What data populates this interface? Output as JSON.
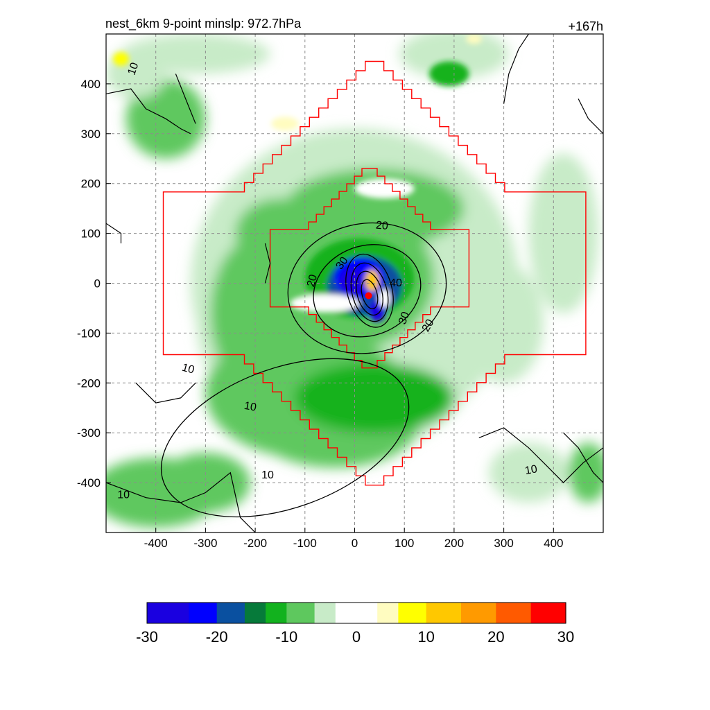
{
  "chart_data": {
    "type": "heatmap",
    "title_left": "nest_6km  9-point minslp: 972.7hPa",
    "title_right": "+167h",
    "xlim": [
      -500,
      500
    ],
    "ylim": [
      -500,
      500
    ],
    "x_ticks": [
      -400,
      -300,
      -200,
      -100,
      0,
      100,
      200,
      300,
      400
    ],
    "y_ticks": [
      400,
      300,
      200,
      100,
      0,
      -100,
      -200,
      -300,
      -400
    ],
    "grid": true,
    "colorbar": {
      "range": [
        -30,
        30
      ],
      "tick_values": [
        -30,
        -20,
        -10,
        0,
        10,
        20,
        30
      ],
      "tick_labels": [
        "-30",
        "-20",
        "-10",
        "0",
        "10",
        "20",
        "30"
      ],
      "stops": [
        {
          "v": -30,
          "color": "#4a0a8c"
        },
        {
          "v": -24,
          "color": "#1a00e0"
        },
        {
          "v": -20,
          "color": "#0000ff"
        },
        {
          "v": -16,
          "color": "#0a50a0"
        },
        {
          "v": -13,
          "color": "#067a3a"
        },
        {
          "v": -10,
          "color": "#12b21e"
        },
        {
          "v": -6,
          "color": "#5ec85e"
        },
        {
          "v": -3,
          "color": "#c8ebc8"
        },
        {
          "v": -2,
          "color": "#ffffff"
        },
        {
          "v": 3,
          "color": "#ffffff"
        },
        {
          "v": 6,
          "color": "#fffcc0"
        },
        {
          "v": 10,
          "color": "#ffff00"
        },
        {
          "v": 15,
          "color": "#ffc800"
        },
        {
          "v": 20,
          "color": "#ff9a00"
        },
        {
          "v": 25,
          "color": "#ff5a00"
        },
        {
          "v": 30,
          "color": "#ff0000"
        }
      ]
    },
    "contour_labels": [
      {
        "text": "10",
        "x": -445,
        "y": 430,
        "rot": -70
      },
      {
        "text": "20",
        "x": 55,
        "y": 115,
        "rot": 5
      },
      {
        "text": "30",
        "x": -25,
        "y": 40,
        "rot": -55
      },
      {
        "text": "20",
        "x": -85,
        "y": 5,
        "rot": -75
      },
      {
        "text": "40",
        "x": 83,
        "y": 0,
        "rot": 0
      },
      {
        "text": "30",
        "x": 100,
        "y": -70,
        "rot": -70
      },
      {
        "text": "20",
        "x": 148,
        "y": -85,
        "rot": -60
      },
      {
        "text": "10",
        "x": -335,
        "y": -172,
        "rot": 15
      },
      {
        "text": "10",
        "x": -210,
        "y": -248,
        "rot": 10
      },
      {
        "text": "10",
        "x": -175,
        "y": -385,
        "rot": 0
      },
      {
        "text": "10",
        "x": -465,
        "y": -425,
        "rot": 0
      },
      {
        "text": "10",
        "x": 355,
        "y": -375,
        "rot": -10
      }
    ],
    "storm_center": {
      "x": 28,
      "y": -25,
      "color": "#ff0000"
    },
    "inner_box_color": "#ff0000"
  }
}
